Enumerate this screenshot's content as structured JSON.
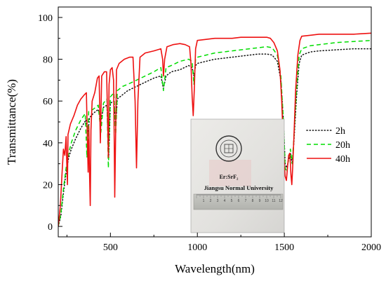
{
  "chart_data": {
    "type": "line",
    "title": "",
    "xlabel": "Wavelength(nm)",
    "ylabel": "Transmittance(%)",
    "xlim": [
      200,
      2000
    ],
    "ylim": [
      -5,
      105
    ],
    "xticks": [
      500,
      1000,
      1500,
      2000
    ],
    "yticks": [
      0,
      20,
      40,
      60,
      80,
      100
    ],
    "grid": false,
    "legend_position": "right",
    "series": [
      {
        "name": "2h",
        "color": "#111111",
        "style": "dotted",
        "points": [
          [
            200,
            0
          ],
          [
            215,
            5
          ],
          [
            230,
            16
          ],
          [
            245,
            26
          ],
          [
            260,
            33
          ],
          [
            275,
            37
          ],
          [
            300,
            42
          ],
          [
            330,
            47
          ],
          [
            360,
            51
          ],
          [
            370,
            44
          ],
          [
            380,
            52
          ],
          [
            400,
            54
          ],
          [
            430,
            56
          ],
          [
            445,
            50
          ],
          [
            460,
            57
          ],
          [
            480,
            58
          ],
          [
            490,
            33
          ],
          [
            500,
            59
          ],
          [
            520,
            60
          ],
          [
            530,
            48
          ],
          [
            540,
            61
          ],
          [
            570,
            63
          ],
          [
            600,
            65
          ],
          [
            650,
            67
          ],
          [
            700,
            69
          ],
          [
            750,
            71
          ],
          [
            790,
            72
          ],
          [
            805,
            66
          ],
          [
            820,
            72
          ],
          [
            850,
            74
          ],
          [
            900,
            75
          ],
          [
            950,
            77
          ],
          [
            970,
            76
          ],
          [
            980,
            72
          ],
          [
            990,
            77
          ],
          [
            1000,
            78
          ],
          [
            1050,
            79
          ],
          [
            1100,
            80
          ],
          [
            1150,
            80.5
          ],
          [
            1200,
            81
          ],
          [
            1250,
            81.5
          ],
          [
            1300,
            82
          ],
          [
            1350,
            82.5
          ],
          [
            1400,
            82.5
          ],
          [
            1430,
            82
          ],
          [
            1460,
            79
          ],
          [
            1480,
            70
          ],
          [
            1495,
            50
          ],
          [
            1505,
            30
          ],
          [
            1515,
            28
          ],
          [
            1525,
            32
          ],
          [
            1535,
            35
          ],
          [
            1545,
            30
          ],
          [
            1555,
            40
          ],
          [
            1570,
            62
          ],
          [
            1585,
            78
          ],
          [
            1600,
            82
          ],
          [
            1650,
            83.5
          ],
          [
            1700,
            84
          ],
          [
            1800,
            84.5
          ],
          [
            1900,
            85
          ],
          [
            2000,
            85
          ]
        ]
      },
      {
        "name": "20h",
        "color": "#00dd00",
        "style": "dashed",
        "points": [
          [
            200,
            0
          ],
          [
            215,
            6
          ],
          [
            230,
            18
          ],
          [
            245,
            28
          ],
          [
            260,
            35
          ],
          [
            275,
            40
          ],
          [
            300,
            46
          ],
          [
            330,
            51
          ],
          [
            355,
            54
          ],
          [
            365,
            33
          ],
          [
            375,
            55
          ],
          [
            400,
            56
          ],
          [
            430,
            58
          ],
          [
            445,
            45
          ],
          [
            460,
            59
          ],
          [
            480,
            61
          ],
          [
            488,
            28
          ],
          [
            500,
            62
          ],
          [
            520,
            64
          ],
          [
            530,
            44
          ],
          [
            540,
            65
          ],
          [
            570,
            67
          ],
          [
            600,
            68
          ],
          [
            650,
            70
          ],
          [
            700,
            72
          ],
          [
            750,
            74
          ],
          [
            790,
            76
          ],
          [
            805,
            65
          ],
          [
            820,
            76
          ],
          [
            850,
            77
          ],
          [
            900,
            79
          ],
          [
            950,
            80
          ],
          [
            970,
            79
          ],
          [
            980,
            68
          ],
          [
            990,
            80
          ],
          [
            1000,
            81
          ],
          [
            1050,
            82
          ],
          [
            1100,
            83
          ],
          [
            1150,
            83.5
          ],
          [
            1200,
            84
          ],
          [
            1250,
            84.5
          ],
          [
            1300,
            85
          ],
          [
            1350,
            85.5
          ],
          [
            1400,
            86
          ],
          [
            1430,
            85.5
          ],
          [
            1460,
            82
          ],
          [
            1480,
            72
          ],
          [
            1495,
            50
          ],
          [
            1505,
            28
          ],
          [
            1515,
            26
          ],
          [
            1525,
            33
          ],
          [
            1535,
            37
          ],
          [
            1545,
            30
          ],
          [
            1555,
            42
          ],
          [
            1570,
            66
          ],
          [
            1585,
            82
          ],
          [
            1600,
            85
          ],
          [
            1650,
            86.5
          ],
          [
            1700,
            87
          ],
          [
            1800,
            88
          ],
          [
            1900,
            88.5
          ],
          [
            2000,
            89
          ]
        ]
      },
      {
        "name": "40h",
        "color": "#ee1111",
        "style": "solid",
        "points": [
          [
            200,
            0
          ],
          [
            212,
            10
          ],
          [
            222,
            26
          ],
          [
            230,
            37
          ],
          [
            238,
            34
          ],
          [
            245,
            43
          ],
          [
            250,
            27
          ],
          [
            253,
            20
          ],
          [
            256,
            44
          ],
          [
            270,
            49
          ],
          [
            290,
            53
          ],
          [
            310,
            58
          ],
          [
            330,
            61
          ],
          [
            350,
            63
          ],
          [
            362,
            64
          ],
          [
            368,
            40
          ],
          [
            372,
            26
          ],
          [
            376,
            48
          ],
          [
            380,
            25
          ],
          [
            384,
            10
          ],
          [
            388,
            46
          ],
          [
            395,
            60
          ],
          [
            410,
            64
          ],
          [
            425,
            71
          ],
          [
            435,
            72
          ],
          [
            442,
            40
          ],
          [
            450,
            72
          ],
          [
            465,
            74
          ],
          [
            478,
            74
          ],
          [
            484,
            50
          ],
          [
            488,
            33
          ],
          [
            492,
            68
          ],
          [
            500,
            75
          ],
          [
            510,
            76
          ],
          [
            518,
            70
          ],
          [
            522,
            40
          ],
          [
            525,
            14
          ],
          [
            530,
            45
          ],
          [
            535,
            75
          ],
          [
            550,
            78
          ],
          [
            580,
            80
          ],
          [
            610,
            81
          ],
          [
            630,
            81
          ],
          [
            642,
            60
          ],
          [
            650,
            28
          ],
          [
            658,
            60
          ],
          [
            670,
            81
          ],
          [
            700,
            83
          ],
          [
            750,
            84
          ],
          [
            790,
            85
          ],
          [
            800,
            80
          ],
          [
            805,
            72
          ],
          [
            812,
            80
          ],
          [
            825,
            86
          ],
          [
            860,
            87
          ],
          [
            900,
            87.5
          ],
          [
            930,
            87
          ],
          [
            955,
            86
          ],
          [
            963,
            78
          ],
          [
            970,
            62
          ],
          [
            976,
            53
          ],
          [
            982,
            65
          ],
          [
            990,
            85
          ],
          [
            1000,
            89
          ],
          [
            1050,
            89.5
          ],
          [
            1100,
            90
          ],
          [
            1150,
            90
          ],
          [
            1200,
            90
          ],
          [
            1250,
            90.5
          ],
          [
            1300,
            90.5
          ],
          [
            1350,
            90.5
          ],
          [
            1400,
            90.5
          ],
          [
            1420,
            90
          ],
          [
            1440,
            88
          ],
          [
            1460,
            84
          ],
          [
            1475,
            75
          ],
          [
            1485,
            60
          ],
          [
            1492,
            45
          ],
          [
            1498,
            33
          ],
          [
            1505,
            24
          ],
          [
            1512,
            22
          ],
          [
            1518,
            28
          ],
          [
            1525,
            34
          ],
          [
            1532,
            35
          ],
          [
            1538,
            25
          ],
          [
            1543,
            20
          ],
          [
            1548,
            28
          ],
          [
            1555,
            42
          ],
          [
            1565,
            65
          ],
          [
            1578,
            82
          ],
          [
            1590,
            89
          ],
          [
            1600,
            91
          ],
          [
            1650,
            91.5
          ],
          [
            1700,
            92
          ],
          [
            1800,
            92
          ],
          [
            1900,
            92
          ],
          [
            2000,
            92.5
          ]
        ]
      }
    ]
  },
  "inset_photo": {
    "label_material": "Er:SrF₂",
    "label_university": "Jiangsu Normal University",
    "ruler_numbers": [
      "1",
      "2",
      "3",
      "4",
      "5",
      "6",
      "7",
      "8",
      "9",
      "10",
      "11",
      "12"
    ]
  }
}
